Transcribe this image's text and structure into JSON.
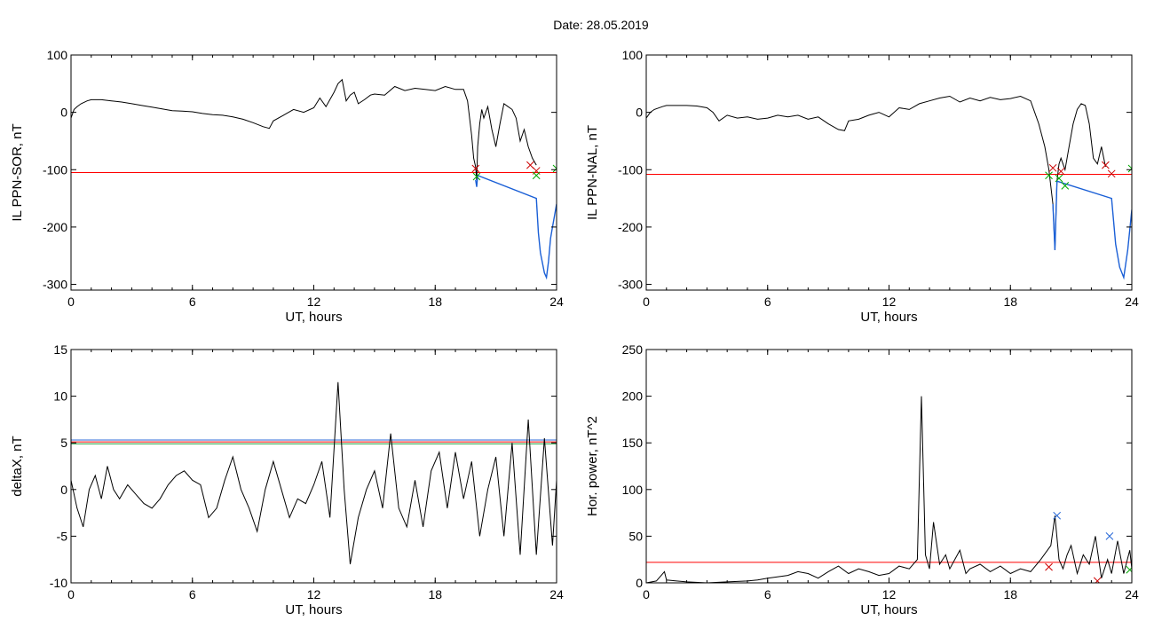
{
  "figure_title": "Date:  28.05.2019",
  "chart_data": [
    {
      "id": "sor",
      "type": "line",
      "ylabel": "IL PPN-SOR, nT",
      "xlabel": "UT, hours",
      "xlim": [
        0,
        24
      ],
      "ylim": [
        -310,
        100
      ],
      "x_ticks": [
        0,
        6,
        12,
        18,
        24
      ],
      "y_ticks": [
        -300,
        -200,
        -100,
        0,
        100
      ],
      "x_tick_labels": [
        "0",
        "6",
        "12",
        "18",
        "24"
      ],
      "y_tick_labels": [
        "-300",
        "-200",
        "-100",
        "0",
        "100"
      ],
      "series": [
        {
          "color": "#000000",
          "x": [
            0,
            0.15,
            0.3,
            0.5,
            0.8,
            1.0,
            1.5,
            2.0,
            2.5,
            3.0,
            3.5,
            4.0,
            4.5,
            5.0,
            5.5,
            6.0,
            6.5,
            7.0,
            7.5,
            8.0,
            8.5,
            9.0,
            9.5,
            9.8,
            10.0,
            10.5,
            11.0,
            11.5,
            12.0,
            12.3,
            12.6,
            13.0,
            13.2,
            13.4,
            13.6,
            13.8,
            14.0,
            14.2,
            14.5,
            14.8,
            15.0,
            15.5,
            16.0,
            16.5,
            17.0,
            17.5,
            18.0,
            18.5,
            19.0,
            19.4,
            19.6,
            19.8,
            19.9,
            20.0,
            20.05,
            20.1,
            20.2,
            20.3,
            20.4,
            20.6,
            20.8,
            21.0,
            21.2,
            21.4,
            21.6,
            21.8,
            22.0,
            22.2,
            22.4,
            22.6,
            22.8,
            23.0
          ],
          "y": [
            -10,
            5,
            10,
            15,
            20,
            22,
            22,
            20,
            18,
            15,
            12,
            9,
            6,
            3,
            2,
            1,
            -2,
            -4,
            -5,
            -8,
            -12,
            -18,
            -25,
            -28,
            -15,
            -5,
            5,
            0,
            8,
            25,
            10,
            35,
            50,
            57,
            20,
            30,
            35,
            15,
            22,
            30,
            32,
            30,
            45,
            38,
            42,
            40,
            38,
            45,
            40,
            40,
            20,
            -40,
            -80,
            -95,
            -118,
            -60,
            -20,
            5,
            -10,
            10,
            -30,
            -60,
            -20,
            15,
            10,
            5,
            -10,
            -50,
            -30,
            -60,
            -80,
            -92
          ]
        },
        {
          "color": "#1a5fd6",
          "x": [
            20.0,
            20.05,
            20.1,
            23.0,
            23.1,
            23.2,
            23.4,
            23.5,
            23.6,
            23.7,
            23.8,
            23.9,
            24.0
          ],
          "y": [
            -118,
            -130,
            -110,
            -150,
            -210,
            -245,
            -280,
            -288,
            -260,
            -220,
            -200,
            -180,
            -160
          ]
        }
      ],
      "threshold": {
        "value": -105,
        "color": "#ff0000"
      },
      "markers": [
        {
          "x": 20.0,
          "y": -98,
          "color": "#cc0000"
        },
        {
          "x": 22.7,
          "y": -92,
          "color": "#cc0000"
        },
        {
          "x": 23.0,
          "y": -102,
          "color": "#cc0000"
        },
        {
          "x": 20.05,
          "y": -112,
          "color": "#00aa00"
        },
        {
          "x": 23.0,
          "y": -110,
          "color": "#00aa00"
        },
        {
          "x": 24.0,
          "y": -98,
          "color": "#00aa00"
        }
      ]
    },
    {
      "id": "nal",
      "type": "line",
      "ylabel": "IL PPN-NAL, nT",
      "xlabel": "UT, hours",
      "xlim": [
        0,
        24
      ],
      "ylim": [
        -310,
        100
      ],
      "x_ticks": [
        0,
        6,
        12,
        18,
        24
      ],
      "y_ticks": [
        -300,
        -200,
        -100,
        0,
        100
      ],
      "x_tick_labels": [
        "0",
        "6",
        "12",
        "18",
        "24"
      ],
      "y_tick_labels": [
        "-300",
        "-200",
        "-100",
        "0",
        "100"
      ],
      "series": [
        {
          "color": "#000000",
          "x": [
            0,
            0.2,
            0.4,
            0.8,
            1.0,
            1.5,
            2.0,
            2.5,
            3.0,
            3.3,
            3.6,
            4.0,
            4.5,
            5.0,
            5.5,
            6.0,
            6.5,
            7.0,
            7.5,
            8.0,
            8.5,
            9.0,
            9.5,
            9.8,
            10.0,
            10.5,
            11.0,
            11.5,
            12.0,
            12.5,
            13.0,
            13.5,
            14.0,
            14.5,
            15.0,
            15.5,
            16.0,
            16.5,
            17.0,
            17.5,
            18.0,
            18.5,
            19.0,
            19.4,
            19.7,
            19.9,
            20.1,
            20.2,
            20.3,
            20.4,
            20.5,
            20.7,
            20.9,
            21.1,
            21.3,
            21.5,
            21.7,
            21.9,
            22.1,
            22.3,
            22.5,
            22.7
          ],
          "y": [
            -10,
            0,
            5,
            10,
            12,
            12,
            12,
            11,
            8,
            0,
            -15,
            -5,
            -10,
            -8,
            -12,
            -10,
            -5,
            -8,
            -5,
            -12,
            -8,
            -20,
            -30,
            -32,
            -15,
            -12,
            -5,
            0,
            -8,
            8,
            5,
            15,
            20,
            25,
            28,
            18,
            25,
            20,
            26,
            22,
            24,
            28,
            20,
            -20,
            -60,
            -100,
            -160,
            -240,
            -120,
            -90,
            -80,
            -100,
            -60,
            -20,
            5,
            15,
            12,
            -20,
            -80,
            -90,
            -60,
            -95
          ]
        },
        {
          "color": "#1a5fd6",
          "x": [
            20.1,
            20.2,
            20.3,
            23.0,
            23.2,
            23.4,
            23.6,
            23.8,
            24.0
          ],
          "y": [
            -160,
            -240,
            -120,
            -150,
            -230,
            -270,
            -288,
            -240,
            -170
          ]
        }
      ],
      "threshold": {
        "value": -108,
        "color": "#ff0000"
      },
      "markers": [
        {
          "x": 20.1,
          "y": -97,
          "color": "#cc0000"
        },
        {
          "x": 20.5,
          "y": -103,
          "color": "#cc0000"
        },
        {
          "x": 22.7,
          "y": -92,
          "color": "#cc0000"
        },
        {
          "x": 23.0,
          "y": -107,
          "color": "#cc0000"
        },
        {
          "x": 19.9,
          "y": -110,
          "color": "#00aa00"
        },
        {
          "x": 20.4,
          "y": -115,
          "color": "#00aa00"
        },
        {
          "x": 20.7,
          "y": -128,
          "color": "#00aa00"
        },
        {
          "x": 24.0,
          "y": -98,
          "color": "#00aa00"
        }
      ]
    },
    {
      "id": "deltax",
      "type": "line",
      "ylabel": "deltaX, nT",
      "xlabel": "UT, hours",
      "xlim": [
        0,
        24
      ],
      "ylim": [
        -10,
        15
      ],
      "x_ticks": [
        0,
        6,
        12,
        18,
        24
      ],
      "y_ticks": [
        -10,
        -5,
        0,
        5,
        10,
        15
      ],
      "x_tick_labels": [
        "0",
        "6",
        "12",
        "18",
        "24"
      ],
      "y_tick_labels": [
        "-10",
        "-5",
        "0",
        "5",
        "10",
        "15"
      ],
      "series": [
        {
          "color": "#000000",
          "x": [
            0,
            0.3,
            0.6,
            0.9,
            1.2,
            1.5,
            1.8,
            2.1,
            2.4,
            2.8,
            3.2,
            3.6,
            4.0,
            4.4,
            4.8,
            5.2,
            5.6,
            6.0,
            6.4,
            6.8,
            7.2,
            7.6,
            8.0,
            8.4,
            8.8,
            9.2,
            9.6,
            10.0,
            10.4,
            10.8,
            11.2,
            11.6,
            12.0,
            12.4,
            12.8,
            13.2,
            13.5,
            13.8,
            14.2,
            14.6,
            15.0,
            15.4,
            15.8,
            16.2,
            16.6,
            17.0,
            17.4,
            17.8,
            18.2,
            18.6,
            19.0,
            19.4,
            19.8,
            20.2,
            20.6,
            21.0,
            21.4,
            21.8,
            22.2,
            22.6,
            23.0,
            23.4,
            23.8,
            24.0
          ],
          "y": [
            1,
            -2,
            -4,
            0,
            1.5,
            -1,
            2.5,
            0,
            -1,
            0.5,
            -0.5,
            -1.5,
            -2,
            -1,
            0.5,
            1.5,
            2,
            1,
            0.5,
            -3,
            -2,
            1,
            3.5,
            0,
            -2,
            -4.5,
            0,
            3,
            0,
            -3,
            -1,
            -1.5,
            0.5,
            3,
            -3,
            11.5,
            0,
            -8,
            -3,
            0,
            2,
            -2,
            6,
            -2,
            -4,
            1,
            -4,
            2,
            4,
            -2,
            4,
            -1,
            3,
            -5,
            0,
            3.5,
            -5,
            5,
            -7,
            7.5,
            -7,
            5.5,
            -6,
            1
          ]
        }
      ],
      "threshold_lines": [
        {
          "value": 5.3,
          "color": "#2a6ad8"
        },
        {
          "value": 5.1,
          "color": "#ff0000"
        },
        {
          "value": 4.9,
          "color": "#1e9e3a"
        }
      ]
    },
    {
      "id": "power",
      "type": "line",
      "ylabel": "Hor. power, nT^2",
      "xlabel": "UT, hours",
      "xlim": [
        0,
        24
      ],
      "ylim": [
        0,
        250
      ],
      "x_ticks": [
        0,
        6,
        12,
        18,
        24
      ],
      "y_ticks": [
        0,
        50,
        100,
        150,
        200,
        250
      ],
      "x_tick_labels": [
        "0",
        "6",
        "12",
        "18",
        "24"
      ],
      "y_tick_labels": [
        "0",
        "50",
        "100",
        "150",
        "200",
        "250"
      ],
      "series": [
        {
          "color": "#000000",
          "x": [
            0,
            0.5,
            0.9,
            1.0,
            1.5,
            2.0,
            3.0,
            4.0,
            5.0,
            5.5,
            6.0,
            7.0,
            7.5,
            8.0,
            8.5,
            9.0,
            9.5,
            10.0,
            10.5,
            11.0,
            11.5,
            12.0,
            12.5,
            13.0,
            13.4,
            13.6,
            13.8,
            14.0,
            14.2,
            14.5,
            14.8,
            15.0,
            15.5,
            15.8,
            16.0,
            16.5,
            17.0,
            17.5,
            18.0,
            18.5,
            19.0,
            19.5,
            20.0,
            20.2,
            20.4,
            20.6,
            20.8,
            21.0,
            21.3,
            21.6,
            21.9,
            22.2,
            22.5,
            22.8,
            23.0,
            23.3,
            23.6,
            23.9,
            24.0
          ],
          "y": [
            0,
            2,
            12,
            3,
            2,
            1,
            0,
            1,
            2,
            3,
            5,
            8,
            12,
            10,
            5,
            12,
            18,
            10,
            15,
            12,
            8,
            10,
            18,
            15,
            25,
            200,
            30,
            15,
            65,
            20,
            30,
            15,
            35,
            10,
            15,
            20,
            12,
            18,
            10,
            15,
            12,
            25,
            40,
            72,
            25,
            15,
            30,
            40,
            10,
            30,
            20,
            50,
            5,
            25,
            10,
            45,
            10,
            35,
            15
          ]
        }
      ],
      "threshold": {
        "value": 22,
        "color": "#ff0000"
      },
      "markers": [
        {
          "x": 20.3,
          "y": 72,
          "color": "#2a6ad8"
        },
        {
          "x": 22.9,
          "y": 50,
          "color": "#2a6ad8"
        },
        {
          "x": 19.9,
          "y": 17,
          "color": "#cc0000"
        },
        {
          "x": 22.3,
          "y": 2,
          "color": "#cc0000"
        },
        {
          "x": 23.9,
          "y": 14,
          "color": "#00aa00"
        }
      ]
    }
  ]
}
